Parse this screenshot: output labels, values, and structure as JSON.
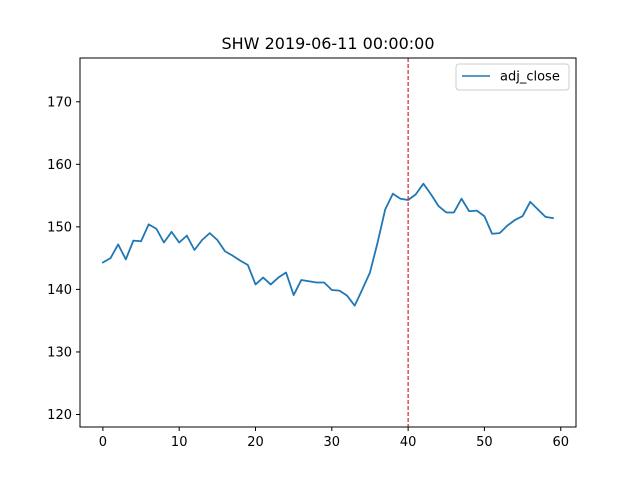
{
  "chart_data": {
    "type": "line",
    "title": "SHW 2019-06-11 00:00:00",
    "xlabel": "",
    "ylabel": "",
    "xlim": [
      -3,
      62
    ],
    "ylim": [
      118,
      177
    ],
    "x_ticks": [
      0,
      10,
      20,
      30,
      40,
      50,
      60
    ],
    "y_ticks": [
      120,
      130,
      140,
      150,
      160,
      170
    ],
    "grid": false,
    "legend_position": "top-right",
    "vertical_line": {
      "x": 40,
      "color": "#d62728",
      "style": "dashed"
    },
    "series": [
      {
        "name": "adj_close",
        "color": "#1f77b4",
        "x": [
          0,
          1,
          2,
          3,
          4,
          5,
          6,
          7,
          8,
          9,
          10,
          11,
          12,
          13,
          14,
          15,
          16,
          17,
          18,
          19,
          20,
          21,
          22,
          23,
          24,
          25,
          26,
          27,
          28,
          29,
          30,
          31,
          32,
          33,
          34,
          35,
          36,
          37,
          38,
          39,
          40,
          41,
          42,
          43,
          44,
          45,
          46,
          47,
          48,
          49,
          50,
          51,
          52,
          53,
          54,
          55,
          56,
          57,
          58,
          59
        ],
        "values": [
          144.3,
          145.0,
          147.2,
          144.8,
          147.8,
          147.7,
          150.4,
          149.7,
          147.5,
          149.2,
          147.5,
          148.6,
          146.3,
          147.9,
          149.0,
          147.9,
          146.1,
          145.4,
          144.6,
          143.9,
          140.8,
          141.9,
          140.8,
          141.9,
          142.7,
          139.1,
          141.5,
          141.3,
          141.1,
          141.1,
          139.9,
          139.8,
          139.0,
          137.4,
          140.0,
          142.7,
          147.5,
          152.8,
          155.3,
          154.5,
          154.3,
          155.2,
          156.9,
          155.2,
          153.3,
          152.3,
          152.3,
          154.5,
          152.5,
          152.6,
          151.7,
          148.9,
          149.0,
          150.2,
          151.1,
          151.7,
          154.0,
          152.8,
          151.6,
          151.4
        ]
      }
    ]
  }
}
